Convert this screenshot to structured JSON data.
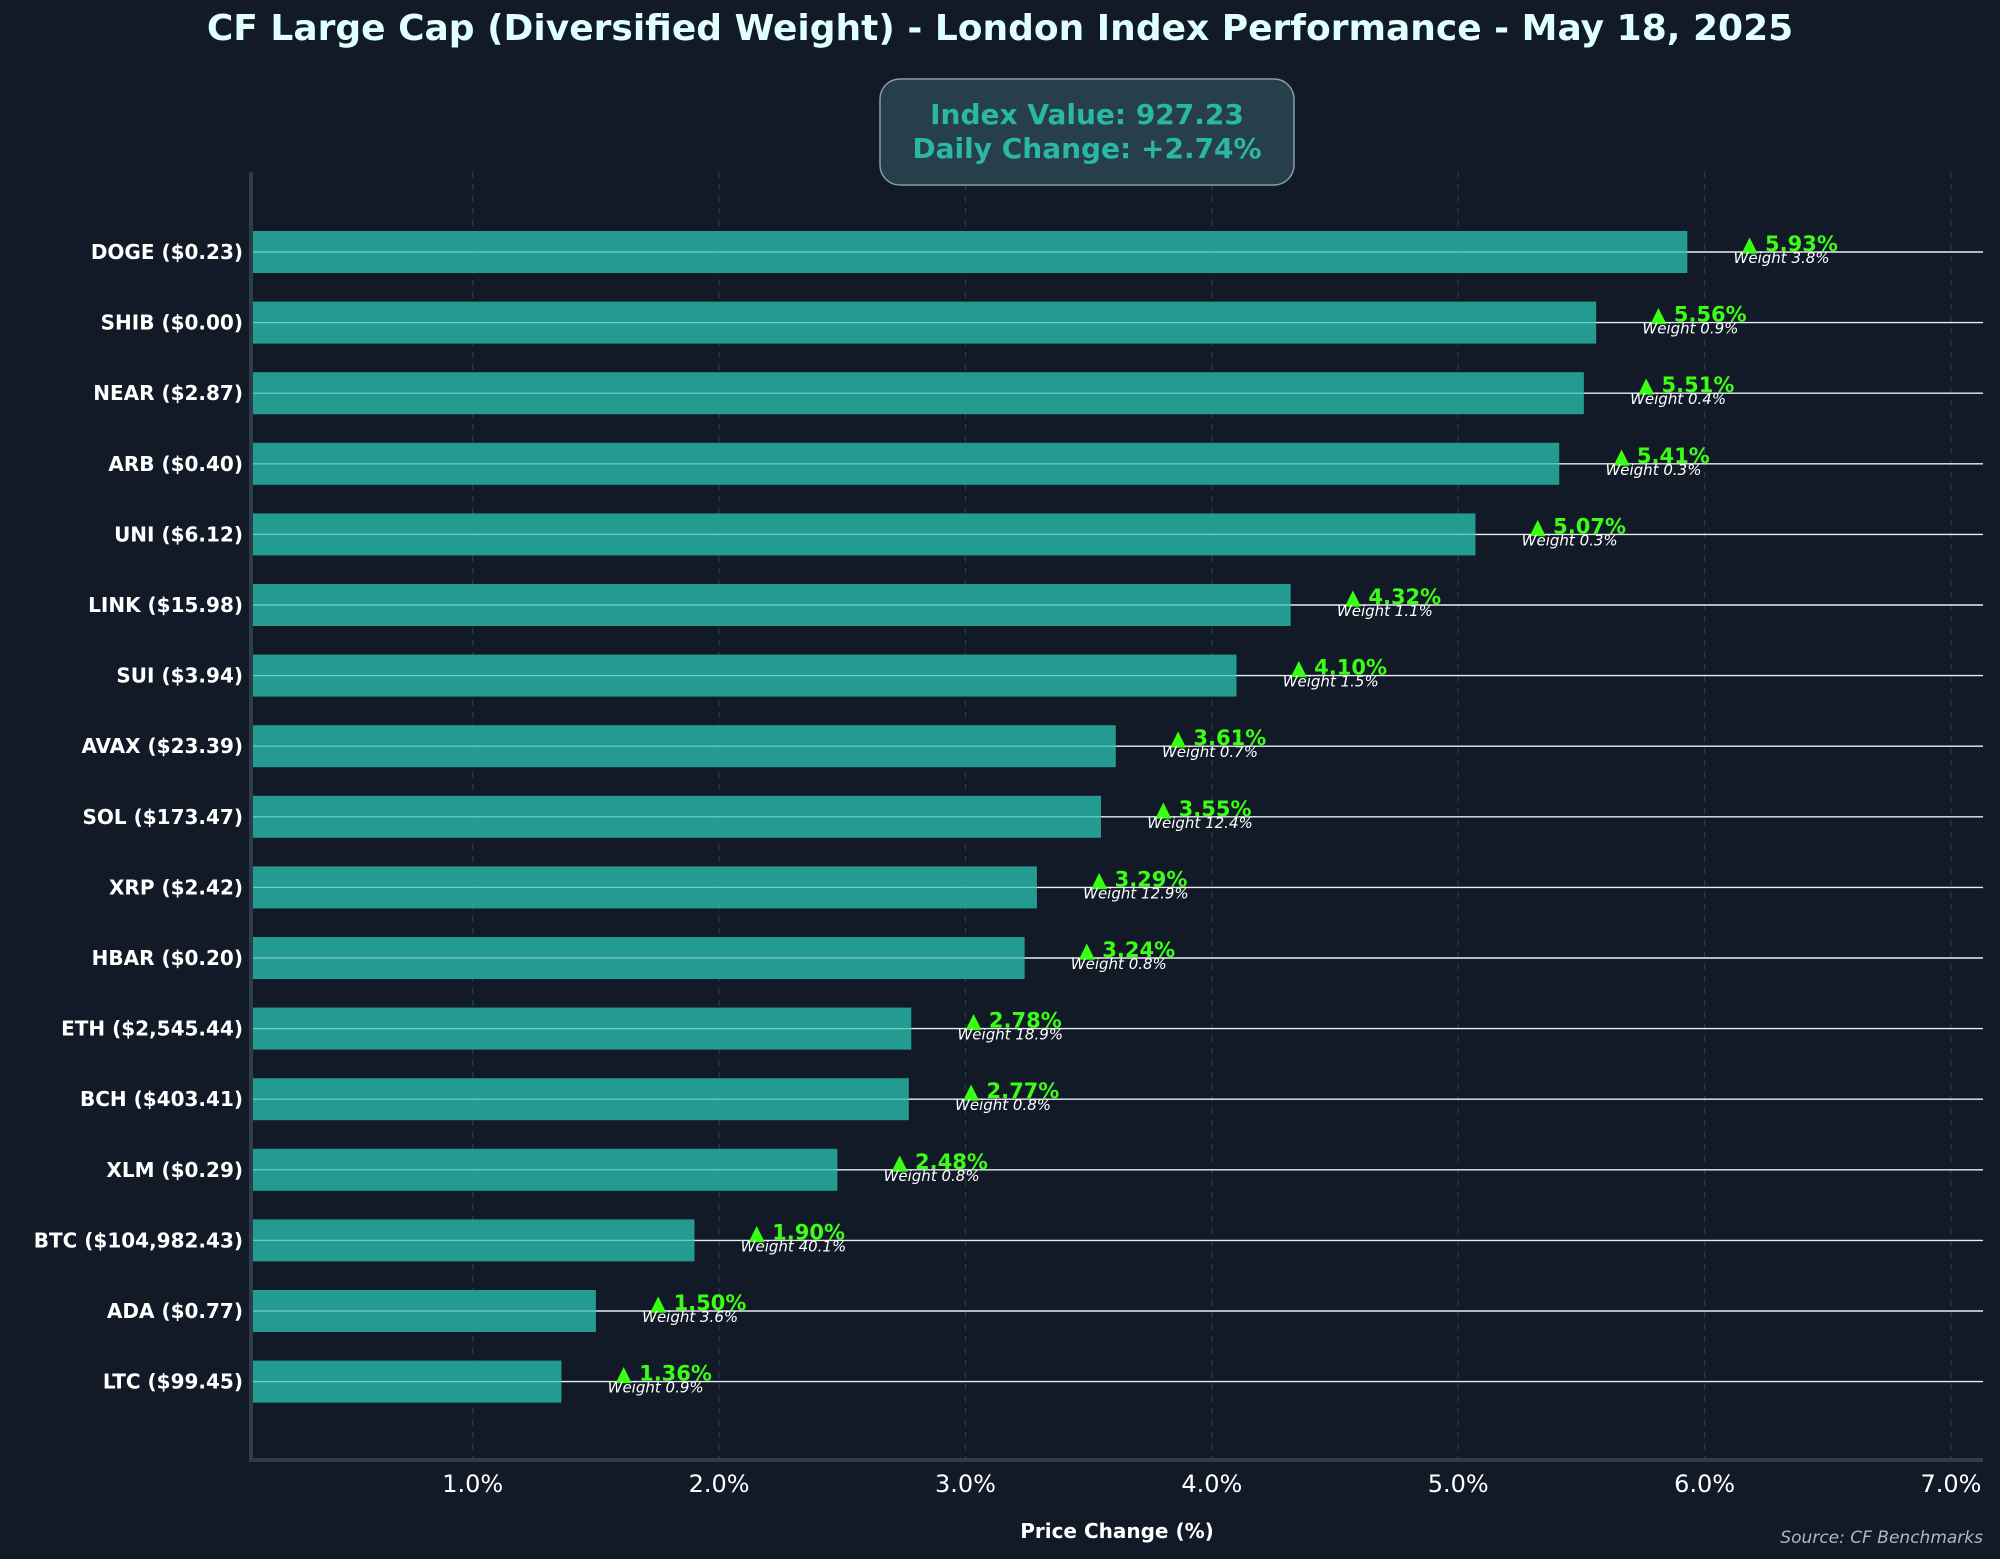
{
  "colors": {
    "background": "#121a28",
    "bar": "#26a69a",
    "title": "#e0ffff",
    "box_text": "#2ab7a3",
    "box_fill": "#263f4a",
    "up_arrow": "#39ff14",
    "label": "#ffffff",
    "grid": "#2a3a48",
    "spine": "#2b3e4a",
    "source": "#a9b8c0"
  },
  "chart_data": {
    "type": "bar",
    "orientation": "horizontal",
    "title": "CF Large Cap (Diversified Weight) - London Index Performance - May 18, 2025",
    "info_box": {
      "index_value": "Index Value: 927.23",
      "daily_change": "Daily Change: +2.74%"
    },
    "xlabel": "Price Change (%)",
    "ylabel": "",
    "source": "Source: CF Benchmarks",
    "xlim": [
      0.1,
      7.13
    ],
    "xticks": [
      1,
      2,
      3,
      4,
      5,
      6,
      7
    ],
    "xtick_labels": [
      "1.0%",
      "2.0%",
      "3.0%",
      "4.0%",
      "5.0%",
      "6.0%",
      "7.0%"
    ],
    "grid": "vertical-dashed",
    "categories": [
      "DOGE ($0.23)",
      "SHIB ($0.00)",
      "NEAR ($2.87)",
      "ARB ($0.40)",
      "UNI ($6.12)",
      "LINK ($15.98)",
      "SUI ($3.94)",
      "AVAX ($23.39)",
      "SOL ($173.47)",
      "XRP ($2.42)",
      "HBAR ($0.20)",
      "ETH ($2,545.44)",
      "BCH ($403.41)",
      "XLM ($0.29)",
      "BTC ($104,982.43)",
      "ADA ($0.77)",
      "LTC ($99.45)"
    ],
    "values": [
      5.93,
      5.56,
      5.51,
      5.41,
      5.07,
      4.32,
      4.1,
      3.61,
      3.55,
      3.29,
      3.24,
      2.78,
      2.77,
      2.48,
      1.9,
      1.5,
      1.36
    ],
    "value_labels": [
      "▲ 5.93%",
      "▲ 5.56%",
      "▲ 5.51%",
      "▲ 5.41%",
      "▲ 5.07%",
      "▲ 4.32%",
      "▲ 4.10%",
      "▲ 3.61%",
      "▲ 3.55%",
      "▲ 3.29%",
      "▲ 3.24%",
      "▲ 2.78%",
      "▲ 2.77%",
      "▲ 2.48%",
      "▲ 1.90%",
      "▲ 1.50%",
      "▲ 1.36%"
    ],
    "weight_labels": [
      "Weight 3.8%",
      "Weight 0.9%",
      "Weight 0.4%",
      "Weight 0.3%",
      "Weight 0.3%",
      "Weight 1.1%",
      "Weight 1.5%",
      "Weight 0.7%",
      "Weight 12.4%",
      "Weight 12.9%",
      "Weight 0.8%",
      "Weight 18.9%",
      "Weight 0.8%",
      "Weight 0.8%",
      "Weight 40.1%",
      "Weight 3.6%",
      "Weight 0.9%"
    ]
  }
}
